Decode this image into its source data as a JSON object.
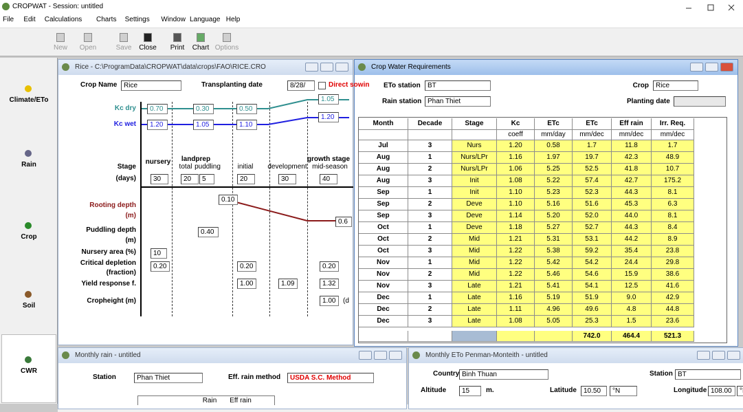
{
  "app": {
    "title": "CROPWAT - Session: untitled",
    "menu": [
      "File",
      "Edit",
      "Calculations",
      "Charts",
      "Settings",
      "Window",
      "Language",
      "Help"
    ],
    "toolbar": [
      "New",
      "Open",
      "Save",
      "Close",
      "Print",
      "Chart",
      "Options"
    ],
    "sidebar": [
      "Climate/ETo",
      "Rain",
      "Crop",
      "Soil",
      "CWR"
    ]
  },
  "crop_window": {
    "title": "Rice - C:\\ProgramData\\CROPWAT\\data\\crops\\FAO\\RICE.CRO",
    "crop_name_label": "Crop Name",
    "crop_name": "Rice",
    "transplanting_label": "Transplanting date",
    "transplanting_date": "8/28/",
    "direct_sowing": "Direct sowin",
    "kc_dry": {
      "label": "Kc dry",
      "values": [
        "0.70",
        "0.30",
        "0.50",
        "1.05"
      ]
    },
    "kc_wet": {
      "label": "Kc wet",
      "values": [
        "1.20",
        "1.05",
        "1.10",
        "1.20"
      ]
    },
    "stage_label": "Stage",
    "stages": [
      "nursery",
      "landprep",
      "total",
      "puddling",
      "initial",
      "development",
      "growth stage",
      "mid-season"
    ],
    "days_label": "(days)",
    "days": [
      "30",
      "20",
      "5",
      "20",
      "30",
      "40"
    ],
    "rooting_depth": {
      "label": "Rooting depth",
      "unit": "(m)",
      "values": [
        "0.10",
        "0.6"
      ]
    },
    "puddling_depth": {
      "label": "Puddling depth",
      "unit": "(m)",
      "value": "0.40"
    },
    "nursery_area": {
      "label": "Nursery area (%)",
      "value": "10"
    },
    "critical_depletion": {
      "label": "Critical depletion",
      "unit": "(fraction)",
      "values": [
        "0.20",
        "0.20",
        "0.20"
      ]
    },
    "yield_response": {
      "label": "Yield response f.",
      "values": [
        "1.00",
        "1.09",
        "1.32"
      ]
    },
    "cropheight": {
      "label": "Cropheight (m)",
      "value": "1.00",
      "suffix": "(d"
    }
  },
  "cwr_window": {
    "title": "Crop Water Requirements",
    "eto_station_label": "ETo station",
    "eto_station": "BT",
    "crop_label": "Crop",
    "crop": "Rice",
    "rain_station_label": "Rain station",
    "rain_station": "Phan Thiet",
    "planting_date_label": "Planting date",
    "table": {
      "headers": [
        "Month",
        "Decade",
        "Stage",
        "Kc",
        "ETc",
        "ETc",
        "Eff rain",
        "Irr. Req."
      ],
      "units": [
        "coeff",
        "mm/day",
        "mm/dec",
        "mm/dec",
        "mm/dec"
      ],
      "rows": [
        [
          "Jul",
          "3",
          "Nurs",
          "1.20",
          "0.58",
          "1.7",
          "11.8",
          "1.7"
        ],
        [
          "Aug",
          "1",
          "Nurs/LPr",
          "1.16",
          "1.97",
          "19.7",
          "42.3",
          "48.9"
        ],
        [
          "Aug",
          "2",
          "Nurs/LPr",
          "1.06",
          "5.25",
          "52.5",
          "41.8",
          "10.7"
        ],
        [
          "Aug",
          "3",
          "Init",
          "1.08",
          "5.22",
          "57.4",
          "42.7",
          "175.2"
        ],
        [
          "Sep",
          "1",
          "Init",
          "1.10",
          "5.23",
          "52.3",
          "44.3",
          "8.1"
        ],
        [
          "Sep",
          "2",
          "Deve",
          "1.10",
          "5.16",
          "51.6",
          "45.3",
          "6.3"
        ],
        [
          "Sep",
          "3",
          "Deve",
          "1.14",
          "5.20",
          "52.0",
          "44.0",
          "8.1"
        ],
        [
          "Oct",
          "1",
          "Deve",
          "1.18",
          "5.27",
          "52.7",
          "44.3",
          "8.4"
        ],
        [
          "Oct",
          "2",
          "Mid",
          "1.21",
          "5.31",
          "53.1",
          "44.2",
          "8.9"
        ],
        [
          "Oct",
          "3",
          "Mid",
          "1.22",
          "5.38",
          "59.2",
          "35.4",
          "23.8"
        ],
        [
          "Nov",
          "1",
          "Mid",
          "1.22",
          "5.42",
          "54.2",
          "24.4",
          "29.8"
        ],
        [
          "Nov",
          "2",
          "Mid",
          "1.22",
          "5.46",
          "54.6",
          "15.9",
          "38.6"
        ],
        [
          "Nov",
          "3",
          "Late",
          "1.21",
          "5.41",
          "54.1",
          "12.5",
          "41.6"
        ],
        [
          "Dec",
          "1",
          "Late",
          "1.16",
          "5.19",
          "51.9",
          "9.0",
          "42.9"
        ],
        [
          "Dec",
          "2",
          "Late",
          "1.11",
          "4.96",
          "49.6",
          "4.8",
          "44.8"
        ],
        [
          "Dec",
          "3",
          "Late",
          "1.08",
          "5.05",
          "25.3",
          "1.5",
          "23.6"
        ]
      ],
      "totals": [
        "742.0",
        "464.4",
        "521.3"
      ]
    }
  },
  "rain_window": {
    "title": "Monthly rain - untitled",
    "station_label": "Station",
    "station": "Phan Thiet",
    "method_label": "Eff. rain method",
    "method": "USDA S.C. Method",
    "columns": [
      "Rain",
      "Eff rain"
    ]
  },
  "eto_window": {
    "title": "Monthly ETo Penman-Monteith - untitled",
    "country_label": "Country",
    "country": "Binh Thuan",
    "station_label": "Station",
    "station": "BT",
    "altitude_label": "Altitude",
    "altitude": "15",
    "altitude_unit": "m.",
    "latitude_label": "Latitude",
    "latitude": "10.50",
    "latitude_dir": "°N",
    "longitude_label": "Longitude",
    "longitude": "108.00",
    "longitude_dir": "°E"
  }
}
